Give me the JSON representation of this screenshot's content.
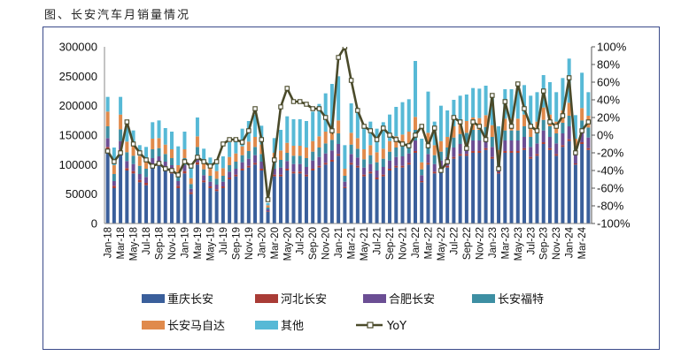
{
  "title": "图、长安汽车月销量情况",
  "chart_data": {
    "type": "bar",
    "stacked": true,
    "months": [
      "Jan-18",
      "Feb-18",
      "Mar-18",
      "Apr-18",
      "May-18",
      "Jun-18",
      "Jul-18",
      "Aug-18",
      "Sep-18",
      "Oct-18",
      "Nov-18",
      "Dec-18",
      "Jan-19",
      "Feb-19",
      "Mar-19",
      "Apr-19",
      "May-19",
      "Jun-19",
      "Jul-19",
      "Aug-19",
      "Sep-19",
      "Oct-19",
      "Nov-19",
      "Dec-19",
      "Jan-20",
      "Feb-20",
      "Mar-20",
      "Apr-20",
      "May-20",
      "Jun-20",
      "Jul-20",
      "Aug-20",
      "Sep-20",
      "Oct-20",
      "Nov-20",
      "Dec-20",
      "Jan-21",
      "Feb-21",
      "Mar-21",
      "Apr-21",
      "May-21",
      "Jun-21",
      "Jul-21",
      "Aug-21",
      "Sep-21",
      "Oct-21",
      "Nov-21",
      "Dec-21",
      "Jan-22",
      "Feb-22",
      "Mar-22",
      "Apr-22",
      "May-22",
      "Jun-22",
      "Jul-22",
      "Aug-22",
      "Sep-22",
      "Oct-22",
      "Nov-22",
      "Dec-22",
      "Jan-23",
      "Feb-23",
      "Mar-23",
      "Apr-23",
      "May-23",
      "Jun-23",
      "Jul-23",
      "Aug-23",
      "Sep-23",
      "Oct-23",
      "Nov-23",
      "Dec-23",
      "Jan-24",
      "Feb-24",
      "Mar-24",
      "Apr-24"
    ],
    "x_tick_labels": [
      "Jan-18",
      "Mar-18",
      "May-18",
      "Jul-18",
      "Sep-18",
      "Nov-18",
      "Jan-19",
      "Mar-19",
      "May-19",
      "Jul-19",
      "Sep-19",
      "Nov-19",
      "Jan-20",
      "Mar-20",
      "May-20",
      "Jul-20",
      "Sep-20",
      "Nov-20",
      "Jan-21",
      "Mar-21",
      "May-21",
      "Jul-21",
      "Sep-21",
      "Nov-21",
      "Jan-22",
      "Mar-22",
      "May-22",
      "Jul-22",
      "Sep-22",
      "Nov-22",
      "Jan-23",
      "Mar-23",
      "May-23",
      "Jul-23",
      "Sep-23",
      "Nov-23",
      "Jan-24",
      "Mar-24"
    ],
    "series": [
      {
        "name": "重庆长安",
        "color": "#3a5f9b",
        "axis": "left",
        "values": [
          125000,
          60000,
          120000,
          90000,
          85000,
          70000,
          65000,
          95000,
          98000,
          90000,
          85000,
          60000,
          85000,
          50000,
          100000,
          70000,
          60000,
          55000,
          60000,
          75000,
          80000,
          90000,
          95000,
          100000,
          90000,
          20000,
          80000,
          80000,
          90000,
          85000,
          85000,
          80000,
          90000,
          95000,
          100000,
          105000,
          115000,
          60000,
          100000,
          95000,
          80000,
          85000,
          75000,
          80000,
          90000,
          95000,
          95000,
          100000,
          120000,
          70000,
          100000,
          85000,
          90000,
          95000,
          110000,
          115000,
          115000,
          120000,
          120000,
          125000,
          110000,
          85000,
          120000,
          120000,
          120000,
          125000,
          110000,
          115000,
          135000,
          125000,
          115000,
          130000,
          140000,
          100000,
          135000,
          125000
        ]
      },
      {
        "name": "河北长安",
        "color": "#a93c36",
        "axis": "left",
        "values": [
          5000,
          4000,
          5000,
          4000,
          4000,
          4000,
          4000,
          4000,
          4000,
          4000,
          4000,
          4000,
          4000,
          3000,
          4000,
          3000,
          3000,
          3000,
          3000,
          3000,
          3000,
          3000,
          3000,
          3000,
          3000,
          1000,
          3000,
          3000,
          3000,
          3000,
          3000,
          3000,
          3000,
          3000,
          3000,
          3000,
          3000,
          2000,
          3000,
          3000,
          3000,
          3000,
          3000,
          3000,
          3000,
          3000,
          3000,
          3000,
          3000,
          2000,
          3000,
          3000,
          3000,
          3000,
          3000,
          3000,
          3000,
          3000,
          3000,
          3000,
          3000,
          2000,
          3000,
          3000,
          3000,
          3000,
          3000,
          3000,
          3000,
          3000,
          3000,
          3000,
          3000,
          2000,
          3000,
          3000
        ]
      },
      {
        "name": "合肥长安",
        "color": "#6b4e94",
        "axis": "left",
        "values": [
          15000,
          8000,
          15000,
          12000,
          12000,
          10000,
          10000,
          12000,
          12000,
          11000,
          10000,
          8000,
          10000,
          6000,
          12000,
          9000,
          8000,
          8000,
          8000,
          10000,
          10000,
          11000,
          12000,
          13000,
          12000,
          3000,
          10000,
          12000,
          13000,
          13000,
          13000,
          13000,
          14000,
          15000,
          16000,
          16000,
          17000,
          9000,
          15000,
          14000,
          12000,
          13000,
          12000,
          13000,
          14000,
          15000,
          16000,
          16000,
          18000,
          10000,
          15000,
          13000,
          14000,
          15000,
          16000,
          17000,
          18000,
          18000,
          18000,
          18000,
          17000,
          12000,
          18000,
          18000,
          18000,
          19000,
          17000,
          18000,
          20000,
          19000,
          18000,
          20000,
          22000,
          15000,
          20000,
          18000
        ]
      },
      {
        "name": "长安福特",
        "color": "#3d8fa3",
        "axis": "left",
        "values": [
          20000,
          12000,
          20000,
          15000,
          14000,
          14000,
          14000,
          15000,
          14000,
          13000,
          12000,
          12000,
          12000,
          8000,
          14000,
          10000,
          10000,
          10000,
          10000,
          11000,
          12000,
          12000,
          13000,
          14000,
          13000,
          3000,
          12000,
          13000,
          14000,
          14000,
          14000,
          15000,
          15000,
          16000,
          17000,
          18000,
          18000,
          10000,
          16000,
          15000,
          14000,
          15000,
          14000,
          14000,
          15000,
          16000,
          17000,
          17000,
          18000,
          10000,
          16000,
          15000,
          15000,
          16000,
          17000,
          17000,
          18000,
          18000,
          18000,
          18000,
          17000,
          12000,
          17000,
          17000,
          17000,
          18000,
          17000,
          17000,
          18000,
          18000,
          17000,
          18000,
          18000,
          12000,
          17000,
          17000
        ]
      },
      {
        "name": "长安马自达",
        "color": "#e08a4c",
        "axis": "left",
        "values": [
          25000,
          15000,
          25000,
          18000,
          18000,
          17000,
          17000,
          18000,
          17000,
          16000,
          15000,
          15000,
          15000,
          10000,
          18000,
          13000,
          13000,
          13000,
          13000,
          14000,
          14000,
          15000,
          16000,
          17000,
          16000,
          4000,
          15000,
          16000,
          17000,
          17000,
          17000,
          18000,
          18000,
          19000,
          20000,
          20000,
          22000,
          12000,
          20000,
          18000,
          17000,
          17000,
          17000,
          17000,
          18000,
          19000,
          20000,
          20000,
          22000,
          12000,
          20000,
          17000,
          18000,
          18000,
          19000,
          20000,
          20000,
          21000,
          20000,
          20000,
          20000,
          14000,
          20000,
          20000,
          20000,
          20000,
          20000,
          20000,
          21000,
          20000,
          20000,
          21000,
          22000,
          15000,
          21000,
          20000
        ]
      },
      {
        "name": "其他",
        "color": "#57b9d6",
        "axis": "left",
        "values": [
          25000,
          30000,
          30000,
          25000,
          25000,
          18000,
          20000,
          28000,
          30000,
          28000,
          30000,
          32000,
          30000,
          20000,
          32000,
          22000,
          18000,
          18000,
          20000,
          25000,
          25000,
          30000,
          35000,
          38000,
          32000,
          4000,
          25000,
          35000,
          45000,
          45000,
          45000,
          45000,
          50000,
          55000,
          65000,
          75000,
          75000,
          40000,
          50000,
          45000,
          40000,
          40000,
          40000,
          45000,
          45000,
          50000,
          55000,
          55000,
          95000,
          40000,
          70000,
          40000,
          60000,
          45000,
          45000,
          45000,
          45000,
          50000,
          50000,
          50000,
          50000,
          40000,
          50000,
          50000,
          50000,
          50000,
          50000,
          50000,
          55000,
          55000,
          50000,
          55000,
          75000,
          40000,
          60000,
          40000
        ]
      },
      {
        "name": "YoY",
        "color": "#4a4a2a",
        "type": "line",
        "axis": "right",
        "marker": "square",
        "values": [
          -18,
          -30,
          -20,
          15,
          -10,
          -20,
          -28,
          -35,
          -32,
          -38,
          -40,
          -45,
          -30,
          -35,
          -25,
          -30,
          -35,
          -30,
          -10,
          -5,
          -5,
          -8,
          5,
          30,
          -5,
          -73,
          -28,
          32,
          53,
          38,
          38,
          35,
          30,
          30,
          20,
          5,
          88,
          100,
          62,
          28,
          10,
          5,
          -5,
          8,
          0,
          -5,
          -10,
          -12,
          0,
          10,
          -12,
          8,
          -40,
          -30,
          20,
          15,
          -15,
          15,
          10,
          -5,
          45,
          -38,
          38,
          10,
          58,
          30,
          10,
          5,
          50,
          15,
          10,
          22,
          65,
          -20,
          5,
          15
        ]
      }
    ],
    "y_left": {
      "min": 0,
      "max": 300000,
      "ticks": [
        "0",
        "50000",
        "100000",
        "150000",
        "200000",
        "250000",
        "300000"
      ]
    },
    "y_right": {
      "min": -100,
      "max": 100,
      "unit": "%",
      "ticks": [
        "-100%",
        "-80%",
        "-60%",
        "-40%",
        "-20%",
        "0%",
        "20%",
        "40%",
        "60%",
        "80%",
        "100%"
      ]
    },
    "legend": {
      "position": "bottom"
    }
  }
}
